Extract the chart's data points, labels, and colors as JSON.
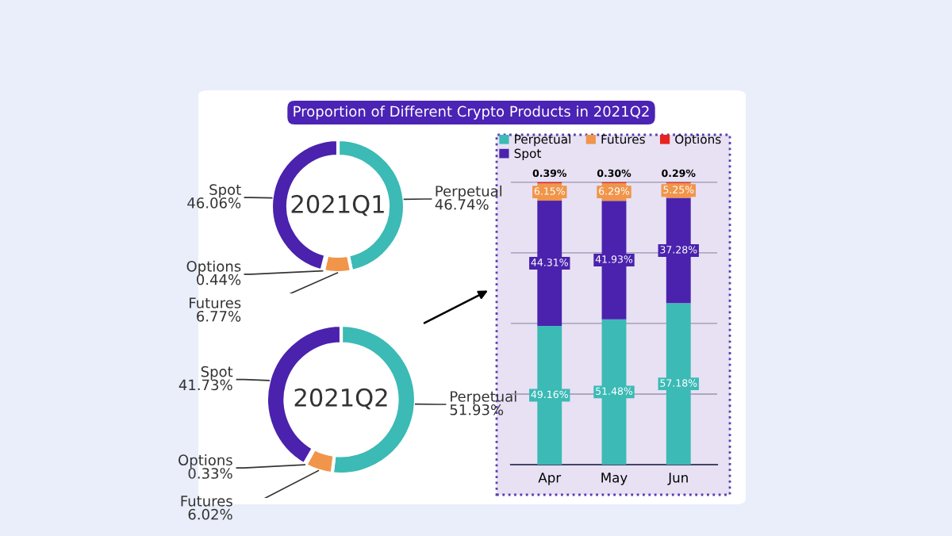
{
  "chart_data": [
    {
      "type": "donut",
      "title": "2021Q1",
      "categories": [
        "Perpetual",
        "Futures",
        "Options",
        "Spot"
      ],
      "values": [
        46.74,
        6.77,
        0.44,
        46.06
      ],
      "value_labels": [
        "46.74%",
        "6.77%",
        "0.44%",
        "46.06%"
      ],
      "colors": [
        "#3cbab5",
        "#f0954a",
        "#e8231f",
        "#4a22ad"
      ]
    },
    {
      "type": "donut",
      "title": "2021Q2",
      "categories": [
        "Perpetual",
        "Futures",
        "Options",
        "Spot"
      ],
      "values": [
        51.93,
        6.02,
        0.33,
        41.73
      ],
      "value_labels": [
        "51.93%",
        "6.02%",
        "0.33%",
        "41.73%"
      ],
      "colors": [
        "#3cbab5",
        "#f0954a",
        "#e8231f",
        "#4a22ad"
      ]
    },
    {
      "type": "bar",
      "title": "Proportion of Different Crypto Products in 2021Q2",
      "categories": [
        "Apr",
        "May",
        "Jun"
      ],
      "stacked": true,
      "series": [
        {
          "name": "Perpetual",
          "color": "#3cbab5",
          "values": [
            49.16,
            51.48,
            57.18
          ],
          "value_labels": [
            "49.16%",
            "51.48%",
            "57.18%"
          ]
        },
        {
          "name": "Spot",
          "color": "#4a22ad",
          "values": [
            44.31,
            41.93,
            37.28
          ],
          "value_labels": [
            "44.31%",
            "41.93%",
            "37.28%"
          ]
        },
        {
          "name": "Futures",
          "color": "#f0954a",
          "values": [
            6.15,
            6.29,
            5.25
          ],
          "value_labels": [
            "6.15%",
            "6.29%",
            "5.25%"
          ]
        },
        {
          "name": "Options",
          "color": "#e8231f",
          "values": [
            0.39,
            0.3,
            0.29
          ],
          "value_labels": [
            "0.39%",
            "0.30%",
            "0.29%"
          ]
        }
      ],
      "yticks": [
        {
          "value": 0,
          "label": null
        },
        {
          "value": 25,
          "label": null
        },
        {
          "value": 50,
          "label": null
        },
        {
          "value": 75,
          "label": null
        },
        {
          "value": 100,
          "label": null
        }
      ],
      "tick_labels": "x",
      "grid": "y",
      "legend": "top left"
    }
  ]
}
